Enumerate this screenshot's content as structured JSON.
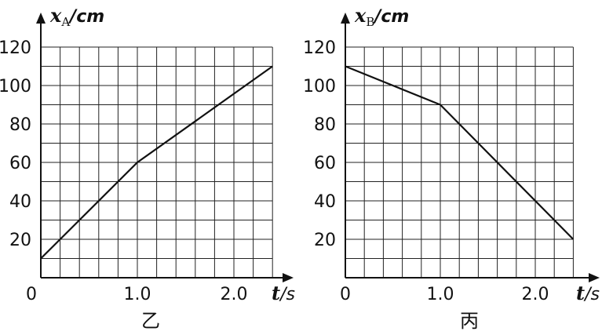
{
  "chart_data": [
    {
      "type": "line",
      "caption": "乙",
      "ylabel_var": "x",
      "ylabel_sub": "A",
      "ylabel_unit": "/cm",
      "xlabel_var": "t",
      "xlabel_unit": "/s",
      "origin_label": "0",
      "x_ticks": [
        "1.0",
        "2.0"
      ],
      "y_ticks": [
        "20",
        "40",
        "60",
        "80",
        "100",
        "120"
      ],
      "xlim": [
        0,
        2.4
      ],
      "ylim": [
        0,
        120
      ],
      "grid": true,
      "series": [
        {
          "x": [
            0,
            1.0,
            2.4
          ],
          "y": [
            10,
            60,
            110
          ]
        }
      ]
    },
    {
      "type": "line",
      "caption": "丙",
      "ylabel_var": "x",
      "ylabel_sub": "B",
      "ylabel_unit": "/cm",
      "xlabel_var": "t",
      "xlabel_unit": "/s",
      "origin_label": "0",
      "x_ticks": [
        "1.0",
        "2.0"
      ],
      "y_ticks": [
        "20",
        "40",
        "60",
        "80",
        "100",
        "120"
      ],
      "xlim": [
        0,
        2.4
      ],
      "ylim": [
        0,
        120
      ],
      "grid": true,
      "series": [
        {
          "x": [
            0,
            1.0,
            2.4
          ],
          "y": [
            110,
            90,
            20
          ]
        }
      ]
    }
  ]
}
